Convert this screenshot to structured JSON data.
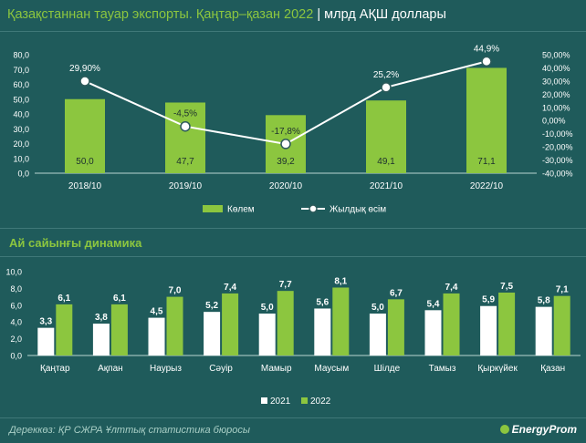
{
  "header": {
    "title": "Қазақстаннан тауар экспорты. Қаңтар–қазан 2022",
    "separator": "|",
    "unit": "млрд АҚШ доллары"
  },
  "section2": {
    "title": "Ай сайынғы динамика"
  },
  "footer": {
    "source": "Дереккөз: ҚР СЖРА Ұлттық статистика бюросы",
    "brand": "EnergyProm"
  },
  "colors": {
    "green": "#8cc63f",
    "white": "#ffffff",
    "background": "#1f5b5b",
    "axis_text": "#ffffff"
  },
  "chart_data": [
    {
      "type": "bar+line",
      "categories": [
        "2018/10",
        "2019/10",
        "2020/10",
        "2021/10",
        "2022/10"
      ],
      "series": [
        {
          "name": "Көлем",
          "type": "bar",
          "values": [
            50.0,
            47.7,
            39.2,
            49.1,
            71.1
          ],
          "value_labels": [
            "50,0",
            "47,7",
            "39,2",
            "49,1",
            "71,1"
          ]
        },
        {
          "name": "Жылдық өсім",
          "type": "line",
          "axis": "right",
          "values": [
            29.9,
            -4.5,
            -17.8,
            25.2,
            44.9
          ],
          "value_labels": [
            "29,90%",
            "-4,5%",
            "-17,8%",
            "25,2%",
            "44,9%"
          ]
        }
      ],
      "ylim": [
        0,
        80
      ],
      "yticks": [
        "0,0",
        "10,0",
        "20,0",
        "30,0",
        "40,0",
        "50,0",
        "60,0",
        "70,0",
        "80,0"
      ],
      "y2lim": [
        -40,
        50
      ],
      "y2ticks": [
        "-40,00%",
        "-30,00%",
        "-20,00%",
        "-10,00%",
        "0,00%",
        "10,00%",
        "20,00%",
        "30,00%",
        "40,00%",
        "50,00%"
      ],
      "legend_position": "bottom"
    },
    {
      "type": "bar",
      "categories": [
        "Қаңтар",
        "Ақпан",
        "Наурыз",
        "Сәуір",
        "Мамыр",
        "Маусым",
        "Шілде",
        "Тамыз",
        "Қыркүйек",
        "Қазан"
      ],
      "series": [
        {
          "name": "2021",
          "values": [
            3.3,
            3.8,
            4.5,
            5.2,
            5.0,
            5.6,
            5.0,
            5.4,
            5.9,
            5.8
          ],
          "value_labels": [
            "3,3",
            "3,8",
            "4,5",
            "5,2",
            "5,0",
            "5,6",
            "5,0",
            "5,4",
            "5,9",
            "5,8"
          ]
        },
        {
          "name": "2022",
          "values": [
            6.1,
            6.1,
            7.0,
            7.4,
            7.7,
            8.1,
            6.7,
            7.4,
            7.5,
            7.1
          ],
          "value_labels": [
            "6,1",
            "6,1",
            "7,0",
            "7,4",
            "7,7",
            "8,1",
            "6,7",
            "7,4",
            "7,5",
            "7,1"
          ]
        }
      ],
      "ylim": [
        0,
        10
      ],
      "yticks": [
        "0,0",
        "2,0",
        "4,0",
        "6,0",
        "8,0",
        "10,0"
      ],
      "legend_position": "bottom"
    }
  ]
}
